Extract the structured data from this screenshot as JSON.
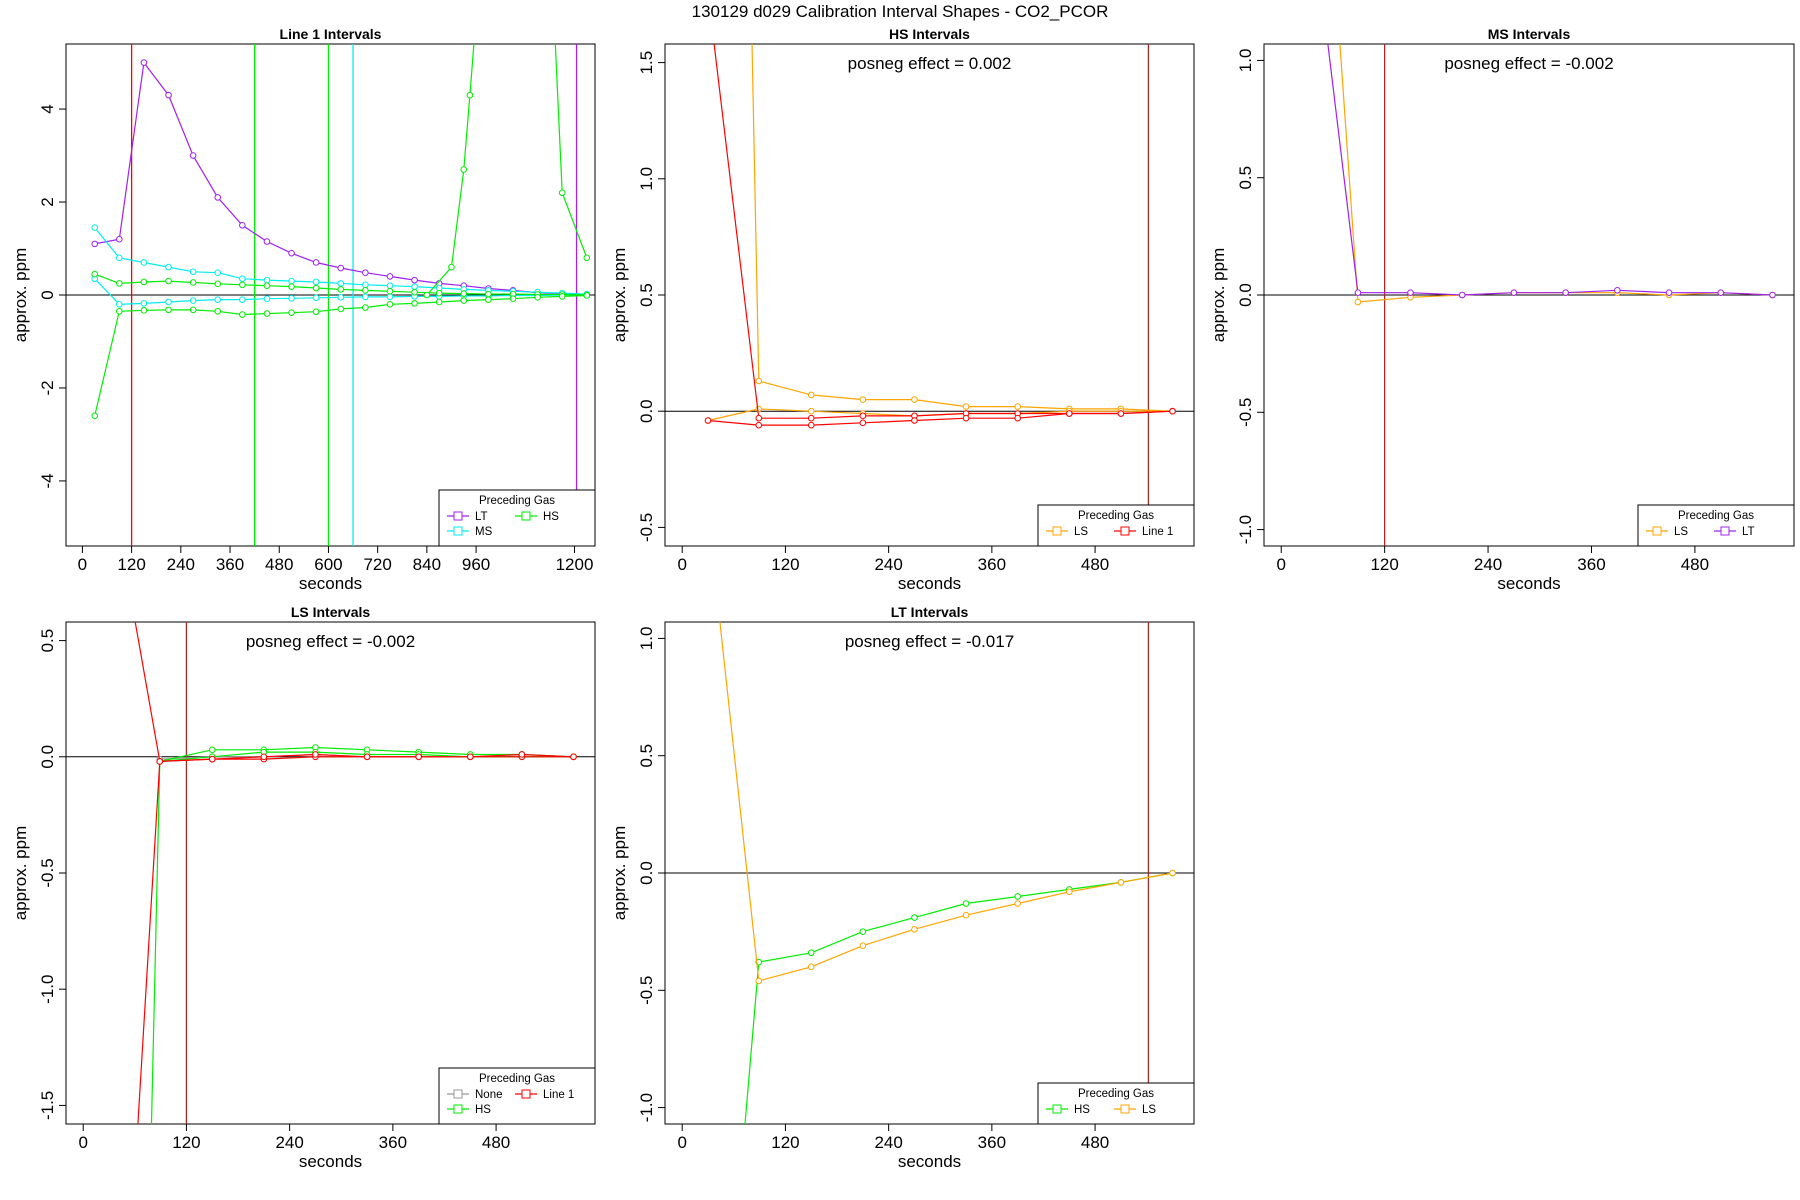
{
  "figure": {
    "title": "130129  d029   Calibration Interval Shapes - CO2_PCOR"
  },
  "colors": {
    "LT": "#a020f0",
    "MS": "#00eeee",
    "HS": "#00ee00",
    "LS": "#ffa500",
    "Line 1": "#ff0000",
    "None": "#999999",
    "cal_marker": "#a52a2a",
    "zero_line": "#000000"
  },
  "chart_data": [
    {
      "id": "line1",
      "type": "line",
      "title": "Line 1 Intervals",
      "xlabel": "seconds",
      "ylabel": "approx. ppm",
      "xlim": [
        -40,
        1250
      ],
      "ylim": [
        -5.4,
        5.4
      ],
      "xticks": [
        0,
        120,
        240,
        360,
        480,
        600,
        720,
        840,
        960,
        1200
      ],
      "yticks": [
        -4,
        -2,
        0,
        2,
        4
      ],
      "annotation": "",
      "grid": false,
      "legend_position": "bottom-right",
      "legend": {
        "title": "Preceding Gas",
        "entries": [
          {
            "label": "LT",
            "gas": "LT"
          },
          {
            "label": "HS",
            "gas": "HS"
          },
          {
            "label": "MS",
            "gas": "MS"
          }
        ]
      },
      "vlines": [
        {
          "x": 120,
          "gas": "Line 1"
        },
        {
          "x": 420,
          "gas": "HS"
        },
        {
          "x": 600,
          "gas": "HS"
        },
        {
          "x": 660,
          "gas": "MS"
        },
        {
          "x": 1205,
          "gas": "LT"
        }
      ],
      "series": [
        {
          "gas": "LT",
          "x": [
            30,
            90,
            150,
            210,
            270,
            330,
            390,
            450,
            510,
            570,
            630,
            690,
            750,
            810,
            870,
            930,
            990,
            1050,
            1110,
            1170,
            1230
          ],
          "y": [
            1.1,
            1.2,
            5.0,
            4.3,
            3.0,
            2.1,
            1.5,
            1.15,
            0.9,
            0.7,
            0.58,
            0.48,
            0.4,
            0.32,
            0.25,
            0.2,
            0.14,
            0.1,
            0.05,
            0.03,
            0.0
          ]
        },
        {
          "gas": "MS",
          "x": [
            30,
            90,
            150,
            210,
            270,
            330,
            390,
            450,
            510,
            570,
            630,
            690,
            750,
            810,
            870,
            930,
            990,
            1050,
            1110,
            1170,
            1230
          ],
          "y": [
            1.45,
            0.8,
            0.7,
            0.6,
            0.5,
            0.48,
            0.35,
            0.32,
            0.3,
            0.28,
            0.25,
            0.22,
            0.2,
            0.18,
            0.15,
            0.12,
            0.1,
            0.08,
            0.06,
            0.04,
            0.02
          ]
        },
        {
          "gas": "MS",
          "x": [
            30,
            90,
            150,
            210,
            270,
            330,
            390,
            450,
            510,
            570,
            630,
            690,
            750,
            810,
            870,
            930,
            990,
            1050,
            1110,
            1170,
            1230
          ],
          "y": [
            0.35,
            -0.2,
            -0.18,
            -0.15,
            -0.12,
            -0.1,
            -0.1,
            -0.08,
            -0.07,
            -0.06,
            -0.05,
            -0.04,
            -0.04,
            -0.03,
            -0.03,
            -0.02,
            -0.02,
            -0.01,
            -0.01,
            0.0,
            -0.01
          ]
        },
        {
          "gas": "HS",
          "x": [
            30,
            90,
            150,
            210,
            270,
            330,
            390,
            450,
            510,
            570,
            630,
            690,
            750,
            810,
            870,
            930,
            990,
            1050,
            1110,
            1170,
            1230
          ],
          "y": [
            0.45,
            0.25,
            0.28,
            0.3,
            0.27,
            0.24,
            0.22,
            0.2,
            0.18,
            0.15,
            0.12,
            0.1,
            0.08,
            0.06,
            0.04,
            0.03,
            0.02,
            0.02,
            0.01,
            0.01,
            0.0
          ]
        },
        {
          "gas": "HS",
          "x": [
            30,
            90,
            150,
            210,
            270,
            330,
            390,
            450,
            510,
            570,
            630,
            690,
            750,
            810,
            870,
            930,
            990,
            1050,
            1110,
            1170,
            1230
          ],
          "y": [
            -2.6,
            -0.35,
            -0.33,
            -0.32,
            -0.32,
            -0.35,
            -0.42,
            -0.4,
            -0.38,
            -0.36,
            -0.3,
            -0.27,
            -0.2,
            -0.18,
            -0.15,
            -0.12,
            -0.1,
            -0.08,
            -0.05,
            -0.03,
            -0.01
          ]
        },
        {
          "gas": "HS",
          "x": [
            840,
            900,
            930,
            945,
            960
          ],
          "y": [
            0.0,
            0.6,
            2.7,
            4.3,
            6.0
          ]
        },
        {
          "gas": "HS",
          "x": [
            1150,
            1170,
            1230
          ],
          "y": [
            6.0,
            2.2,
            0.8
          ]
        }
      ]
    },
    {
      "id": "hs",
      "type": "line",
      "title": "HS Intervals",
      "xlabel": "seconds",
      "ylabel": "approx. ppm",
      "xlim": [
        -20,
        595
      ],
      "ylim": [
        -0.58,
        1.58
      ],
      "xticks": [
        0,
        120,
        240,
        360,
        480
      ],
      "yticks": [
        -0.5,
        0.0,
        0.5,
        1.0,
        1.5
      ],
      "annotation": "posneg effect = 0.002",
      "grid": false,
      "legend_position": "bottom-right",
      "legend": {
        "title": "Preceding Gas",
        "entries": [
          {
            "label": "LS",
            "gas": "LS"
          },
          {
            "label": "Line 1",
            "gas": "Line 1"
          }
        ]
      },
      "vlines": [
        {
          "x": 542,
          "gas": "Line 1"
        }
      ],
      "series": [
        {
          "gas": "LS",
          "x": [
            80,
            89,
            150,
            210,
            270,
            330,
            390,
            450,
            510,
            570
          ],
          "y": [
            1.8,
            0.13,
            0.07,
            0.05,
            0.05,
            0.02,
            0.02,
            0.01,
            0.01,
            0.0
          ]
        },
        {
          "gas": "LS",
          "x": [
            30,
            89,
            150,
            210,
            270,
            330,
            390,
            450,
            510,
            570
          ],
          "y": [
            -0.04,
            0.01,
            0.0,
            -0.01,
            -0.02,
            -0.01,
            -0.01,
            0.0,
            0.0,
            0.0
          ]
        },
        {
          "gas": "Line 1",
          "x": [
            30,
            89,
            150,
            210,
            270,
            330,
            390,
            450,
            510,
            570
          ],
          "y": [
            1.8,
            -0.03,
            -0.03,
            -0.02,
            -0.02,
            -0.01,
            -0.01,
            -0.01,
            -0.01,
            0.0
          ]
        },
        {
          "gas": "Line 1",
          "x": [
            30,
            89,
            150,
            210,
            270,
            330,
            390,
            450,
            510,
            570
          ],
          "y": [
            -0.04,
            -0.06,
            -0.06,
            -0.05,
            -0.04,
            -0.03,
            -0.03,
            -0.01,
            -0.01,
            0.0
          ]
        }
      ]
    },
    {
      "id": "ms",
      "type": "line",
      "title": "MS Intervals",
      "xlabel": "seconds",
      "ylabel": "approx. ppm",
      "xlim": [
        -20,
        595
      ],
      "ylim": [
        -1.07,
        1.07
      ],
      "xticks": [
        0,
        120,
        240,
        360,
        480
      ],
      "yticks": [
        -1.0,
        -0.5,
        0.0,
        0.5,
        1.0
      ],
      "annotation": "posneg effect = -0.002",
      "grid": false,
      "legend_position": "bottom-right",
      "legend": {
        "title": "Preceding Gas",
        "entries": [
          {
            "label": "LS",
            "gas": "LS"
          },
          {
            "label": "LT",
            "gas": "LT"
          }
        ]
      },
      "vlines": [
        {
          "x": 120,
          "gas": "Line 1"
        }
      ],
      "series": [
        {
          "gas": "LS",
          "x": [
            60,
            89,
            150,
            210,
            270,
            330,
            390,
            450,
            510,
            570
          ],
          "y": [
            1.5,
            -0.03,
            -0.01,
            0.0,
            0.01,
            0.01,
            0.01,
            0.0,
            0.01,
            0.0
          ]
        },
        {
          "gas": "LT",
          "x": [
            40,
            89,
            150,
            210,
            270,
            330,
            390,
            450,
            510,
            570
          ],
          "y": [
            1.5,
            0.01,
            0.01,
            0.0,
            0.01,
            0.01,
            0.02,
            0.01,
            0.01,
            0.0
          ]
        }
      ]
    },
    {
      "id": "ls",
      "type": "line",
      "title": "LS Intervals",
      "xlabel": "seconds",
      "ylabel": "approx. ppm",
      "xlim": [
        -20,
        595
      ],
      "ylim": [
        -1.58,
        0.58
      ],
      "xticks": [
        0,
        120,
        240,
        360,
        480
      ],
      "yticks": [
        -1.5,
        -1.0,
        -0.5,
        0.0,
        0.5
      ],
      "annotation": "posneg effect = -0.002",
      "grid": false,
      "legend_position": "bottom-right",
      "legend": {
        "title": "Preceding Gas",
        "entries": [
          {
            "label": "None",
            "gas": "None"
          },
          {
            "label": "Line 1",
            "gas": "Line 1"
          },
          {
            "label": "HS",
            "gas": "HS"
          }
        ]
      },
      "vlines": [
        {
          "x": 120,
          "gas": "Line 1"
        }
      ],
      "series": [
        {
          "gas": "None",
          "x": [
            89,
            150,
            210,
            270,
            330,
            390,
            450,
            510,
            570
          ],
          "y": [
            -0.01,
            0.0,
            0.0,
            0.01,
            0.0,
            0.0,
            0.0,
            0.01,
            0.0
          ]
        },
        {
          "gas": "HS",
          "x": [
            78,
            89,
            150,
            210,
            270,
            330,
            390,
            450,
            510,
            570
          ],
          "y": [
            -1.8,
            -0.02,
            0.03,
            0.03,
            0.04,
            0.03,
            0.02,
            0.01,
            0.01,
            0.0
          ]
        },
        {
          "gas": "HS",
          "x": [
            89,
            150,
            210,
            270,
            330,
            390,
            450,
            510,
            570
          ],
          "y": [
            -0.02,
            0.0,
            0.02,
            0.02,
            0.01,
            0.01,
            0.0,
            0.0,
            0.0
          ]
        },
        {
          "gas": "Line 1",
          "x": [
            50,
            89,
            150,
            210,
            270,
            330,
            390,
            450,
            510,
            570
          ],
          "y": [
            0.8,
            -0.02,
            -0.01,
            -0.01,
            0.0,
            0.0,
            0.0,
            0.0,
            0.0,
            0.0
          ]
        },
        {
          "gas": "Line 1",
          "x": [
            60,
            89,
            150,
            210,
            270,
            330,
            390,
            450,
            510,
            570
          ],
          "y": [
            -1.8,
            -0.02,
            -0.01,
            0.0,
            0.01,
            0.0,
            0.0,
            0.0,
            0.01,
            0.0
          ]
        }
      ]
    },
    {
      "id": "lt",
      "type": "line",
      "title": "LT Intervals",
      "xlabel": "seconds",
      "ylabel": "approx. ppm",
      "xlim": [
        -20,
        595
      ],
      "ylim": [
        -1.07,
        1.07
      ],
      "xticks": [
        0,
        120,
        240,
        360,
        480
      ],
      "yticks": [
        -1.0,
        -0.5,
        0.0,
        0.5,
        1.0
      ],
      "annotation": "posneg effect = -0.017",
      "grid": false,
      "legend_position": "bottom-right",
      "legend": {
        "title": "Preceding Gas",
        "entries": [
          {
            "label": "HS",
            "gas": "HS"
          },
          {
            "label": "LS",
            "gas": "LS"
          }
        ]
      },
      "vlines": [
        {
          "x": 542,
          "gas": "Line 1"
        }
      ],
      "series": [
        {
          "gas": "HS",
          "x": [
            70,
            89,
            150,
            210,
            270,
            330,
            390,
            450,
            510,
            570
          ],
          "y": [
            -1.2,
            -0.38,
            -0.34,
            -0.25,
            -0.19,
            -0.13,
            -0.1,
            -0.07,
            -0.04,
            0.0
          ]
        },
        {
          "gas": "LS",
          "x": [
            40,
            89,
            150,
            210,
            270,
            330,
            390,
            450,
            510,
            570
          ],
          "y": [
            1.2,
            -0.46,
            -0.4,
            -0.31,
            -0.24,
            -0.18,
            -0.13,
            -0.08,
            -0.04,
            0.0
          ]
        }
      ]
    }
  ]
}
